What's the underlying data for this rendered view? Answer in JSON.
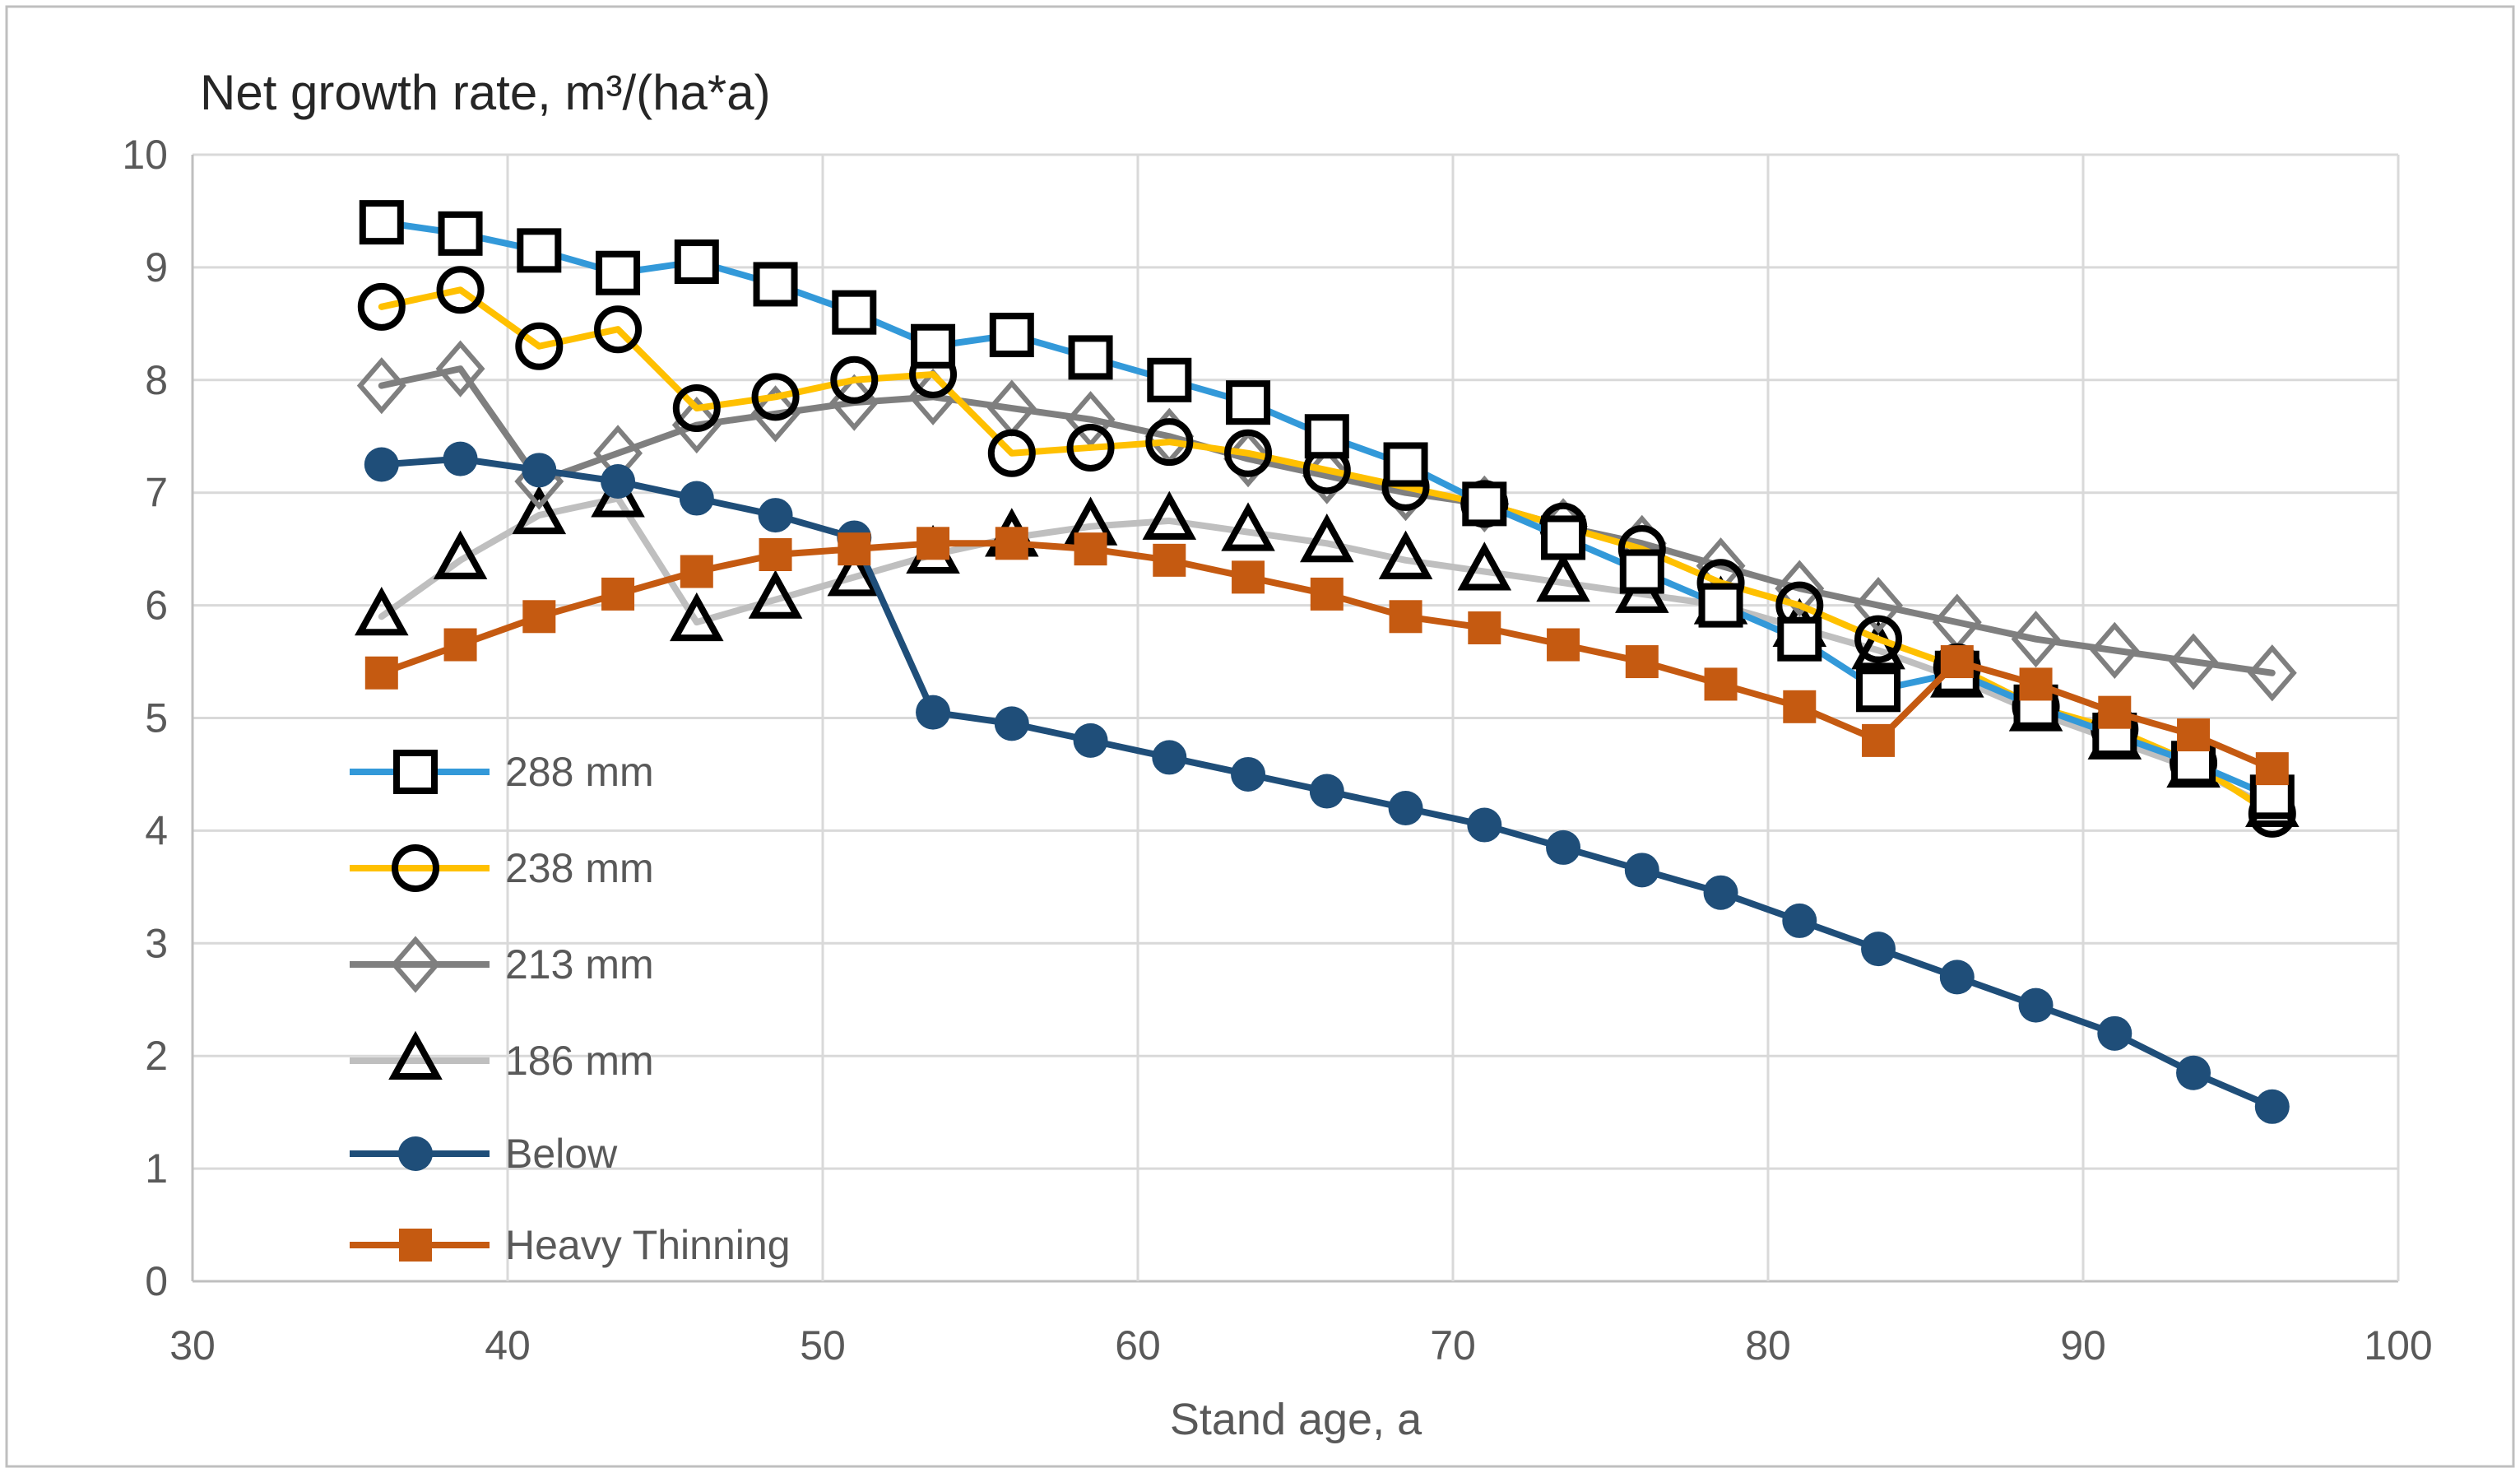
{
  "chart_data": {
    "type": "line",
    "title": "Net growth rate,  m³/(ha*a)",
    "xlabel": "Stand age, a",
    "ylabel": "",
    "xlim": [
      30,
      100
    ],
    "ylim": [
      0,
      10
    ],
    "xticks": [
      30,
      40,
      50,
      60,
      70,
      80,
      90,
      100
    ],
    "yticks": [
      0,
      1,
      2,
      3,
      4,
      5,
      6,
      7,
      8,
      9,
      10
    ],
    "grid": true,
    "legend_position": "inside-left",
    "x": [
      36,
      38.5,
      41,
      43.5,
      46,
      48.5,
      51,
      53.5,
      56,
      58.5,
      61,
      63.5,
      66,
      68.5,
      71,
      73.5,
      76,
      78.5,
      81,
      83.5,
      86,
      88.5,
      91,
      93.5,
      96
    ],
    "series": [
      {
        "name": "288 mm",
        "color": "#3399D9",
        "marker": "open-square",
        "marker_color": "#000000",
        "values": [
          9.4,
          9.3,
          9.15,
          8.95,
          9.05,
          8.85,
          8.6,
          8.3,
          8.4,
          8.2,
          8.0,
          7.8,
          7.5,
          7.25,
          6.9,
          6.6,
          6.3,
          6.0,
          5.7,
          5.25,
          5.4,
          5.1,
          4.85,
          4.6,
          4.3
        ]
      },
      {
        "name": "238 mm",
        "color": "#FFC000",
        "marker": "open-circle",
        "marker_color": "#000000",
        "values": [
          8.65,
          8.8,
          8.3,
          8.45,
          7.75,
          7.85,
          8.0,
          8.05,
          7.35,
          7.4,
          7.45,
          7.35,
          7.2,
          7.05,
          6.9,
          6.7,
          6.5,
          6.2,
          6.0,
          5.7,
          5.45,
          5.1,
          4.9,
          4.6,
          4.15
        ]
      },
      {
        "name": "213 mm",
        "color": "#7F7F7F",
        "marker": "open-diamond",
        "marker_color": "#7F7F7F",
        "values": [
          7.95,
          8.1,
          7.1,
          7.35,
          7.6,
          7.7,
          7.8,
          7.85,
          7.75,
          7.65,
          7.5,
          7.3,
          7.15,
          7.0,
          6.9,
          6.7,
          6.55,
          6.35,
          6.15,
          6.0,
          5.85,
          5.7,
          5.6,
          5.5,
          5.4
        ]
      },
      {
        "name": "186 mm",
        "color": "#BFBFBF",
        "marker": "open-triangle",
        "marker_color": "#000000",
        "values": [
          5.9,
          6.4,
          6.8,
          6.95,
          5.85,
          6.05,
          6.25,
          6.45,
          6.6,
          6.7,
          6.75,
          6.65,
          6.55,
          6.4,
          6.3,
          6.2,
          6.1,
          6.0,
          5.8,
          5.6,
          5.35,
          5.05,
          4.8,
          4.55,
          4.2
        ]
      },
      {
        "name": "Below",
        "color": "#1F4E79",
        "marker": "filled-circle",
        "marker_color": "#1F4E79",
        "values": [
          7.25,
          7.3,
          7.2,
          7.1,
          6.95,
          6.8,
          6.6,
          5.05,
          4.95,
          4.8,
          4.65,
          4.5,
          4.35,
          4.2,
          4.05,
          3.85,
          3.65,
          3.45,
          3.2,
          2.95,
          2.7,
          2.45,
          2.2,
          1.85,
          1.55
        ]
      },
      {
        "name": "Heavy Thinning",
        "color": "#C55A11",
        "marker": "filled-square",
        "marker_color": "#C55A11",
        "values": [
          5.4,
          5.65,
          5.9,
          6.1,
          6.3,
          6.45,
          6.5,
          6.55,
          6.55,
          6.5,
          6.4,
          6.25,
          6.1,
          5.9,
          5.8,
          5.65,
          5.5,
          5.3,
          5.1,
          4.8,
          5.5,
          5.3,
          5.05,
          4.85,
          4.55
        ]
      }
    ]
  },
  "colors": {
    "background": "#FFFFFF",
    "grid": "#D9D9D9",
    "axis": "#BFBFBF",
    "tick_text": "#595959",
    "title_text": "#262626",
    "figure_border": "#BFBFBF"
  }
}
